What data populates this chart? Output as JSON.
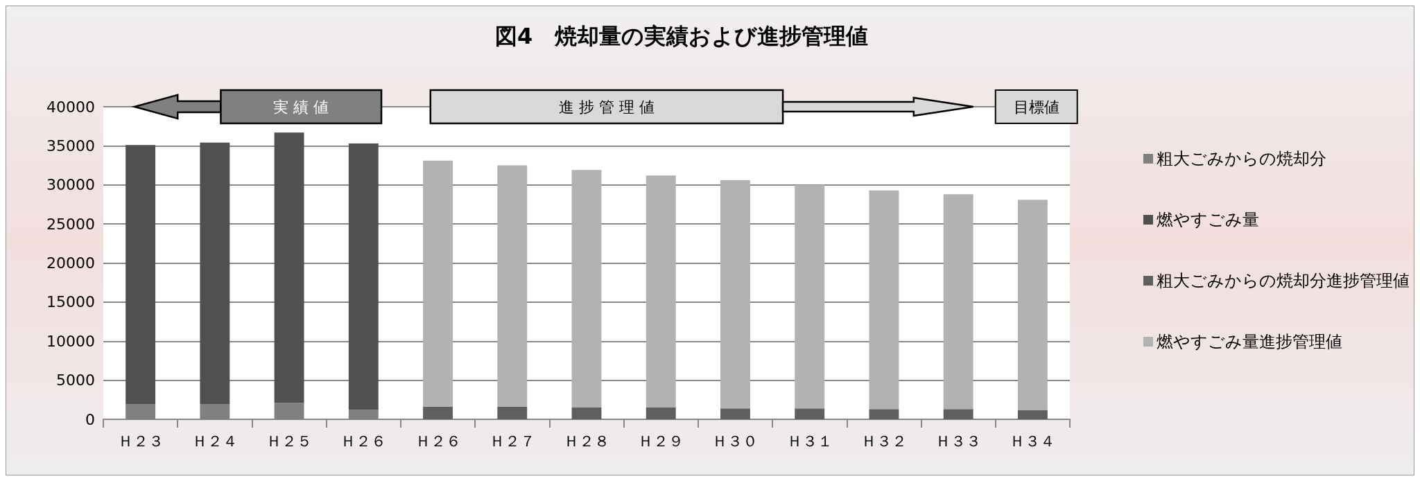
{
  "chart_data": {
    "type": "bar",
    "title": "図4　焼却量の実績および進捗管理値",
    "stacked": true,
    "categories": [
      "Ｈ２３",
      "Ｈ２４",
      "Ｈ２５",
      "Ｈ２６",
      "Ｈ２６",
      "Ｈ２７",
      "Ｈ２８",
      "Ｈ２９",
      "Ｈ３０",
      "Ｈ３１",
      "Ｈ３２",
      "Ｈ３３",
      "Ｈ３４"
    ],
    "series": [
      {
        "name": "粗大ごみからの焼却分",
        "color": "#808080",
        "values": [
          1900,
          1900,
          2100,
          1200,
          null,
          null,
          null,
          null,
          null,
          null,
          null,
          null,
          null
        ]
      },
      {
        "name": "燃やすごみ量",
        "color": "#505050",
        "values": [
          33200,
          33500,
          34600,
          34100,
          null,
          null,
          null,
          null,
          null,
          null,
          null,
          null,
          null
        ]
      },
      {
        "name": "粗大ごみからの焼却分進捗管理値",
        "color": "#5f5f5f",
        "values": [
          null,
          null,
          null,
          null,
          1600,
          1600,
          1500,
          1500,
          1400,
          1400,
          1300,
          1300,
          1200
        ]
      },
      {
        "name": "燃やすごみ量進捗管理値",
        "color": "#b2b2b2",
        "values": [
          null,
          null,
          null,
          null,
          31500,
          30900,
          30400,
          29700,
          29200,
          28600,
          28000,
          27500,
          26900
        ]
      }
    ],
    "ylim": [
      0,
      40000
    ],
    "yticks": [
      0,
      5000,
      10000,
      15000,
      20000,
      25000,
      30000,
      35000,
      40000
    ],
    "grid": "y",
    "legend": "right",
    "annotations": [
      "実 績 値",
      "進 捗 管 理 値",
      "目標値"
    ]
  }
}
